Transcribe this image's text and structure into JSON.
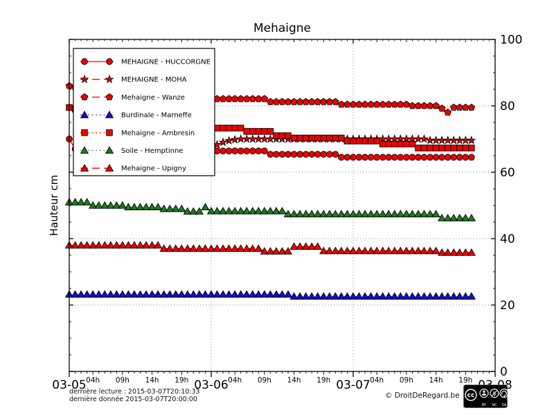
{
  "title": "Mehaigne",
  "ylabel": "Hauteur cm",
  "footer": {
    "last_read": "dernière lecture : 2015-03-07T20:10:33",
    "last_data": "dernière donnée  2015-03-07T20:00:00",
    "copyright": "© DroitDeRegard.be",
    "license_badges": [
      "BY",
      "NC",
      "SA"
    ]
  },
  "chart_data": {
    "type": "line",
    "title": "Mehaigne",
    "ylabel": "Hauteur cm",
    "ylim": [
      0,
      100
    ],
    "yticks": [
      0,
      20,
      40,
      60,
      80,
      100
    ],
    "x_hours_range": [
      0,
      72
    ],
    "x_day_ticks": [
      {
        "hour": 0,
        "label": "03-05"
      },
      {
        "hour": 24,
        "label": "03-06"
      },
      {
        "hour": 48,
        "label": "03-07"
      },
      {
        "hour": 72,
        "label": "03-08"
      }
    ],
    "x_hour_ticks": [
      {
        "hour": 4,
        "label": "04h"
      },
      {
        "hour": 9,
        "label": "09h"
      },
      {
        "hour": 14,
        "label": "14h"
      },
      {
        "hour": 19,
        "label": "19h"
      },
      {
        "hour": 28,
        "label": "04h"
      },
      {
        "hour": 33,
        "label": "09h"
      },
      {
        "hour": 38,
        "label": "14h"
      },
      {
        "hour": 43,
        "label": "19h"
      },
      {
        "hour": 52,
        "label": "04h"
      },
      {
        "hour": 57,
        "label": "09h"
      },
      {
        "hour": 62,
        "label": "14h"
      },
      {
        "hour": 67,
        "label": "19h"
      }
    ],
    "grid": "dotted horizontal at 20/40/60/80, dotted vertical at day boundaries",
    "grid_color": "#777777",
    "legend_position": "upper left",
    "series": [
      {
        "name": "MEHAIGNE - HUCCORGNE",
        "color": "#ee0000",
        "marker": "circle",
        "line": "solid",
        "start_hour": 0,
        "values": [
          70,
          67,
          66.5,
          66.5,
          66.5,
          66.5,
          66.5,
          66.5,
          66.5,
          66.5,
          66.5,
          66.5,
          66.5,
          66.5,
          66.5,
          66.5,
          66.5,
          66.5,
          66.5,
          66.5,
          66.5,
          66.5,
          66.5,
          66.5,
          66.4,
          66.4,
          66.4,
          66.4,
          66.4,
          66.4,
          66.4,
          66.4,
          66.4,
          66.4,
          65.4,
          65.4,
          65.4,
          65.4,
          65.4,
          65.4,
          65.4,
          65.4,
          65.4,
          65.4,
          65.4,
          65.4,
          64.5,
          64.5,
          64.5,
          64.5,
          64.5,
          64.5,
          64.5,
          64.5,
          64.5,
          64.5,
          64.5,
          64.5,
          64.5,
          64.5,
          64.5,
          64.5,
          64.5,
          64.5,
          64.5,
          64.5,
          64.5,
          64.5,
          64.5
        ]
      },
      {
        "name": "MEHAIGNE - MOHA",
        "color": "#ee0000",
        "marker": "star",
        "line": "dashed",
        "start_hour": 23,
        "values": [
          66.5,
          67.5,
          68.3,
          69,
          69.5,
          69.8,
          70,
          70,
          70,
          70,
          70,
          70,
          70,
          70,
          70,
          70,
          70,
          70,
          70,
          70,
          70,
          70,
          70,
          70,
          70,
          70,
          70,
          70,
          70,
          70,
          70,
          70,
          70,
          70,
          70,
          70,
          70,
          70,
          69.6,
          69.6,
          69.6,
          69.6,
          69.6,
          69.6,
          69.6,
          69.6
        ]
      },
      {
        "name": "Mehaigne - Wanze",
        "color": "#ee0000",
        "marker": "pentagon",
        "line": "dashed",
        "start_hour": 0,
        "values": [
          86,
          85.5,
          85,
          84.7,
          84.4,
          84.1,
          83.8,
          83.6,
          83.4,
          83.2,
          83,
          82.9,
          82.8,
          82.7,
          82.6,
          82.5,
          82.4,
          82.4,
          82.4,
          82.4,
          82.4,
          82.4,
          82.4,
          82.4,
          82.1,
          82.1,
          82.1,
          82.1,
          82.1,
          82.1,
          82.1,
          82.1,
          82.1,
          82.1,
          81.2,
          81.2,
          81.2,
          81.2,
          81.2,
          81.2,
          81.2,
          81.2,
          81.2,
          81.2,
          81.2,
          81.2,
          80.4,
          80.4,
          80.4,
          80.4,
          80.4,
          80.4,
          80.4,
          80.4,
          80.4,
          80.4,
          80.4,
          80.4,
          80,
          80,
          80,
          80,
          80,
          79.2,
          78,
          79.5,
          79.5,
          79.5,
          79.5
        ]
      },
      {
        "name": "Burdinale - Marneffe",
        "color": "#1010cc",
        "marker": "triangle",
        "line": "dotted",
        "start_hour": 0,
        "values": [
          23.2,
          23.2,
          23.2,
          23.2,
          23.2,
          23.2,
          23.2,
          23.2,
          23.2,
          23.2,
          23.2,
          23.2,
          23.2,
          23.2,
          23.2,
          23.2,
          23.2,
          23.2,
          23.2,
          23.2,
          23.2,
          23.2,
          23.2,
          23.2,
          23.2,
          23.2,
          23.2,
          23.2,
          23.2,
          23.2,
          23.2,
          23.2,
          23.2,
          23.2,
          23.2,
          23.2,
          23.2,
          23.2,
          22.6,
          22.6,
          22.6,
          22.6,
          22.6,
          22.6,
          22.6,
          22.6,
          22.6,
          22.6,
          22.6,
          22.6,
          22.6,
          22.6,
          22.6,
          22.6,
          22.6,
          22.6,
          22.6,
          22.6,
          22.6,
          22.6,
          22.6,
          22.6,
          22.6,
          22.6,
          22.6,
          22.6,
          22.6,
          22.6,
          22.6
        ]
      },
      {
        "name": "Mehaigne - Ambresin",
        "color": "#ee0000",
        "marker": "square",
        "line": "dotted",
        "start_hour": 0,
        "values": [
          79.5,
          79,
          78.5,
          78,
          77.5,
          77,
          76.5,
          76,
          75.6,
          75.2,
          74.9,
          74.6,
          74.4,
          74.2,
          74,
          73.9,
          73.6,
          73.6,
          73.6,
          73.6,
          73.6,
          73.6,
          73.6,
          73.6,
          73.3,
          73.3,
          73.3,
          73.3,
          73.3,
          73.3,
          72.3,
          72.3,
          72.3,
          72.3,
          72.3,
          71,
          71,
          71,
          70.3,
          70.3,
          70.3,
          70.3,
          70.3,
          70.3,
          70.3,
          70.3,
          70.3,
          69.4,
          69.4,
          69.4,
          69.4,
          69.4,
          69.4,
          68.5,
          68.5,
          68.5,
          68.5,
          68.5,
          68.5,
          67.3,
          67.3,
          67.3,
          67.3,
          67.3,
          67.3,
          67.3,
          67.3,
          67.3,
          67.3
        ]
      },
      {
        "name": "Soile - Hemptinne",
        "color": "#1e7a1e",
        "marker": "triangle",
        "line": "dotted",
        "start_hour": 0,
        "values": [
          51,
          51,
          51,
          51,
          50,
          50,
          50,
          50,
          50,
          50,
          49.5,
          49.5,
          49.5,
          49.5,
          49.5,
          49.5,
          49,
          49,
          49,
          49,
          48.2,
          48.2,
          48.2,
          49.5,
          48.3,
          48.3,
          48.3,
          48.3,
          48.3,
          48.3,
          48.3,
          48.3,
          48.3,
          48.3,
          48.3,
          48.3,
          48.3,
          47.4,
          47.4,
          47.4,
          47.4,
          47.4,
          47.4,
          47.4,
          47.4,
          47.4,
          47.4,
          47.4,
          47.4,
          47.4,
          47.4,
          47.4,
          47.4,
          47.4,
          47.4,
          47.4,
          47.4,
          47.4,
          47.4,
          47.4,
          47.4,
          47.4,
          47.4,
          46.2,
          46.2,
          46.2,
          46.2,
          46.2,
          46.2
        ]
      },
      {
        "name": "Mehaigne - Upigny",
        "color": "#ee0000",
        "marker": "triangle",
        "line": "dashed",
        "start_hour": 0,
        "values": [
          38,
          38,
          38,
          38,
          38,
          38,
          38,
          38,
          38,
          38,
          38,
          38,
          38,
          38,
          38,
          38,
          37,
          37,
          37,
          37,
          37,
          37,
          37,
          37,
          37,
          37,
          37,
          37,
          37,
          37,
          37,
          37,
          37,
          36.2,
          36.2,
          36.2,
          36.2,
          36.2,
          37.6,
          37.6,
          37.6,
          37.6,
          37.6,
          36.3,
          36.3,
          36.3,
          36.3,
          36.3,
          36.3,
          36.3,
          36.3,
          36.3,
          36.3,
          36.3,
          36.3,
          36.3,
          36.3,
          36.3,
          36.3,
          36.3,
          36.3,
          36.3,
          36.3,
          35.8,
          35.8,
          35.8,
          35.8,
          35.8,
          35.8
        ]
      }
    ]
  }
}
